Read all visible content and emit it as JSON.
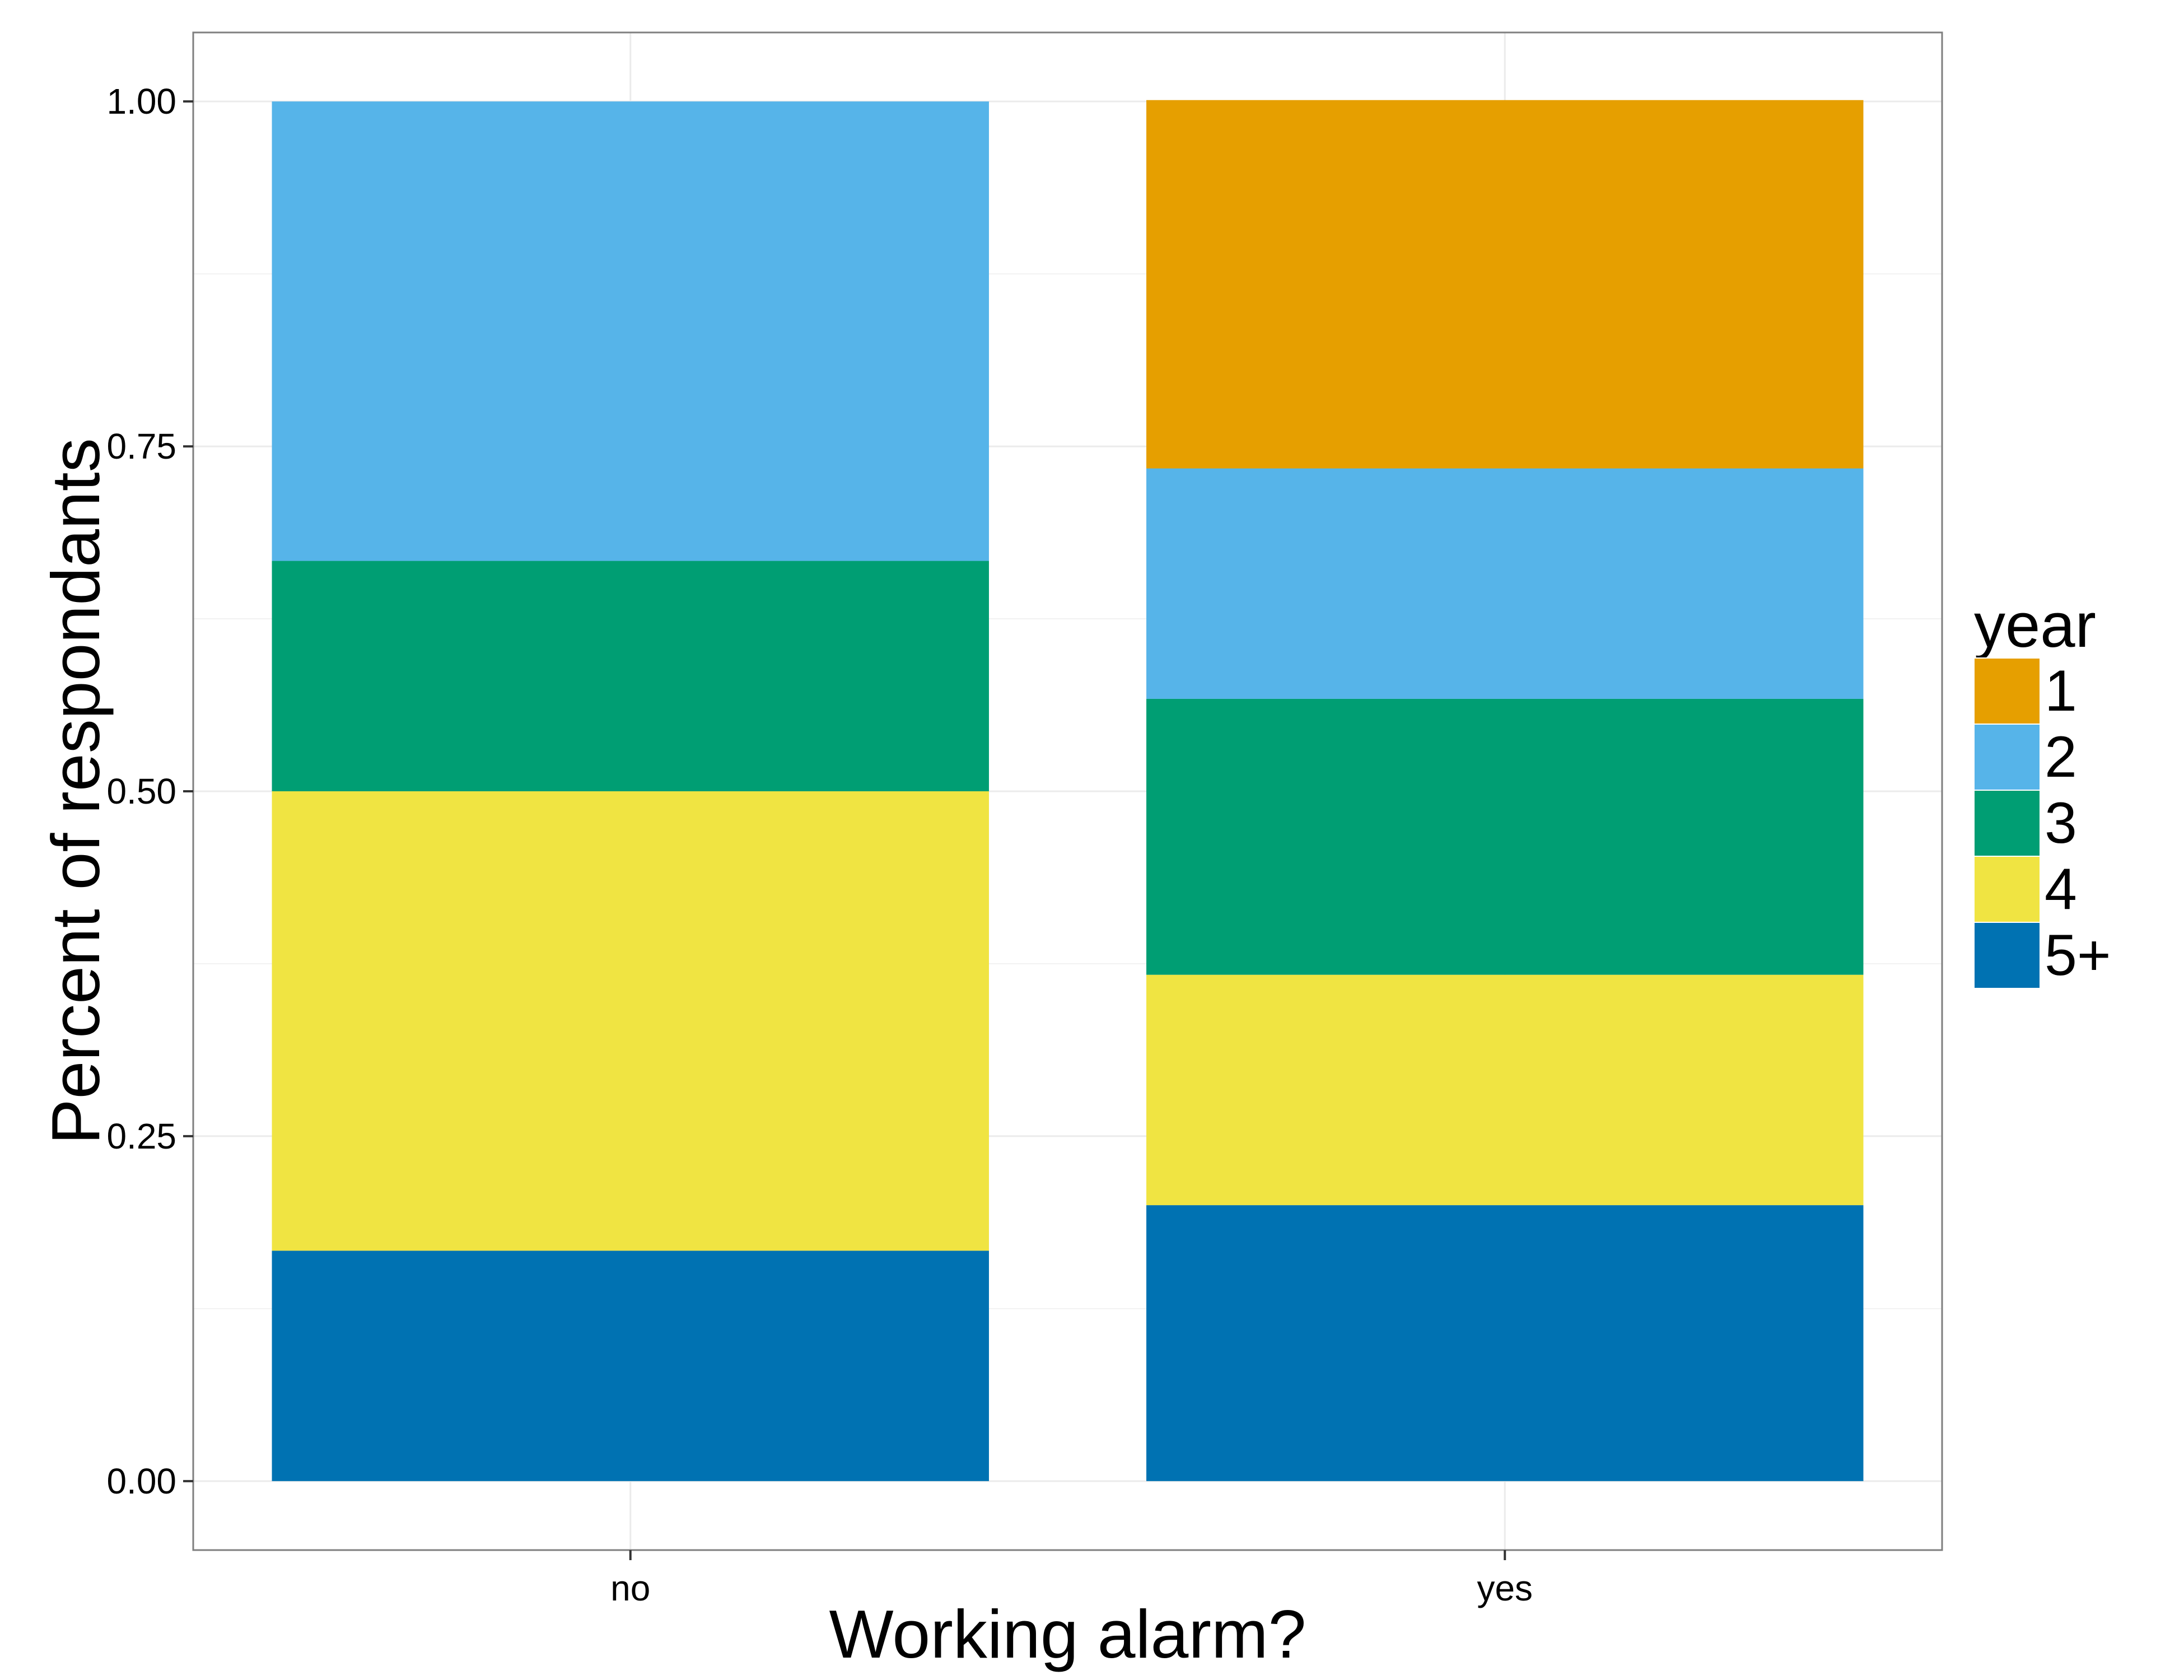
{
  "chart_data": {
    "type": "bar",
    "stacked": true,
    "xlabel": "Working alarm?",
    "ylabel": "Percent of respondants",
    "ylim": [
      -0.05,
      1.05
    ],
    "yticks": [
      0,
      0.25,
      0.5,
      0.75,
      1
    ],
    "ytick_labels": [
      "0.00",
      "0.25",
      "0.50",
      "0.75",
      "1.00"
    ],
    "categories": [
      "no",
      "yes"
    ],
    "grid": true,
    "legend": {
      "title": "year",
      "position": "right"
    },
    "series": [
      {
        "name": "1",
        "color": "#E69F00",
        "values": [
          0.0,
          0.267
        ]
      },
      {
        "name": "2",
        "color": "#56B4E9",
        "values": [
          0.333,
          0.167
        ]
      },
      {
        "name": "3",
        "color": "#009E73",
        "values": [
          0.167,
          0.2
        ]
      },
      {
        "name": "4",
        "color": "#F0E442",
        "values": [
          0.333,
          0.167
        ]
      },
      {
        "name": "5+",
        "color": "#0072B2",
        "values": [
          0.167,
          0.2
        ]
      }
    ]
  }
}
